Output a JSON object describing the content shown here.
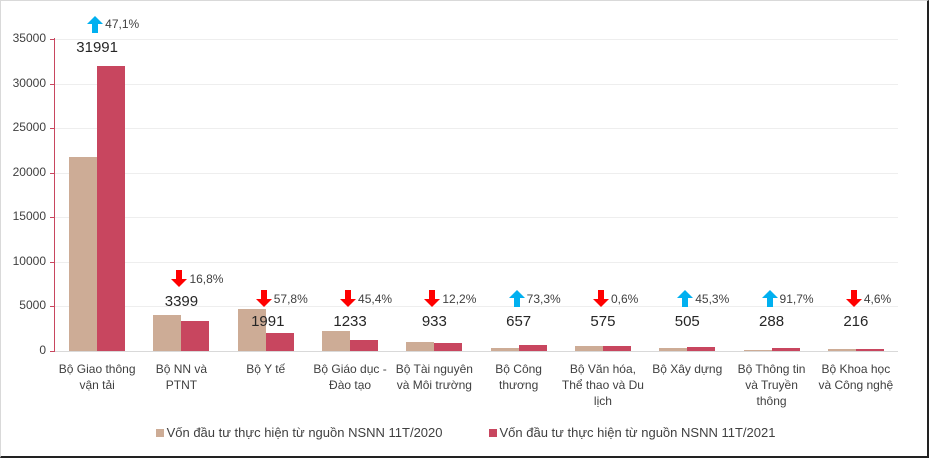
{
  "chart_data": {
    "type": "bar",
    "title": "",
    "xlabel": "",
    "ylabel": "",
    "ylim": [
      0,
      35000
    ],
    "yticks": [
      0,
      5000,
      10000,
      15000,
      20000,
      25000,
      30000,
      35000
    ],
    "grid": true,
    "legend_position": "bottom",
    "categories": [
      "Bộ Giao thông vận tải",
      "Bộ NN và PTNT",
      "Bộ Y tế",
      "Bộ Giáo dục - Đào tạo",
      "Bộ Tài nguyên và Môi trường",
      "Bộ Công thương",
      "Bộ Văn hóa, Thể thao và Du lịch",
      "Bộ Xây dựng",
      "Bộ Thông tin và Truyền thông",
      "Bộ Khoa học và Công nghệ"
    ],
    "series": [
      {
        "name": "Vốn đầu tư thực hiện từ nguồn NSNN 11T/2020",
        "color": "#cdac96",
        "values": [
          21750,
          4060,
          4720,
          2260,
          1060,
          380,
          580,
          350,
          150,
          225
        ]
      },
      {
        "name": "Vốn đầu tư thực hiện từ nguồn NSNN 11T/2021",
        "color": "#c8465f",
        "values": [
          31991,
          3399,
          1991,
          1233,
          933,
          657,
          575,
          505,
          288,
          216
        ]
      }
    ],
    "annotations": [
      {
        "category": "Bộ Giao thông vận tải",
        "direction": "up",
        "change": "47,1%"
      },
      {
        "category": "Bộ NN và PTNT",
        "direction": "down",
        "change": "16,8%"
      },
      {
        "category": "Bộ Y tế",
        "direction": "down",
        "change": "57,8%"
      },
      {
        "category": "Bộ Giáo dục - Đào tạo",
        "direction": "down",
        "change": "45,4%"
      },
      {
        "category": "Bộ Tài nguyên và Môi trường",
        "direction": "down",
        "change": "12,2%"
      },
      {
        "category": "Bộ Công thương",
        "direction": "up",
        "change": "73,3%"
      },
      {
        "category": "Bộ Văn hóa, Thể thao và Du lịch",
        "direction": "down",
        "change": "0,6%"
      },
      {
        "category": "Bộ Xây dựng",
        "direction": "up",
        "change": "45,3%"
      },
      {
        "category": "Bộ Thông tin và Truyền thông",
        "direction": "up",
        "change": "91,7%"
      },
      {
        "category": "Bộ Khoa học và Công nghệ",
        "direction": "down",
        "change": "4,6%"
      }
    ],
    "colors": {
      "up_arrow": "#00b0f0",
      "down_arrow": "#ff0000"
    }
  },
  "axis": {
    "y_labels": [
      "35000",
      "30000",
      "25000",
      "20000",
      "15000",
      "10000",
      "5000",
      "0"
    ]
  },
  "categories_display": [
    [
      "Bộ Giao thông",
      "vận tải"
    ],
    [
      "Bộ NN và",
      "PTNT"
    ],
    [
      "Bộ Y tế"
    ],
    [
      "Bộ Giáo dục -",
      "Đào tạo"
    ],
    [
      "Bộ Tài nguyên",
      "và Môi trường"
    ],
    [
      "Bộ Công",
      "thương"
    ],
    [
      "Bộ Văn hóa,",
      "Thể thao và Du",
      "lịch"
    ],
    [
      "Bộ Xây dựng"
    ],
    [
      "Bộ Thông tin",
      "và Truyền",
      "thông"
    ],
    [
      "Bộ Khoa học",
      "và Công nghệ"
    ]
  ],
  "value_labels": [
    "31991",
    "3399",
    "1991",
    "1233",
    "933",
    "657",
    "575",
    "505",
    "288",
    "216"
  ],
  "legend": {
    "series_2020": "Vốn đầu tư thực hiện từ nguồn NSNN 11T/2020",
    "series_2021": "Vốn đầu tư thực hiện từ nguồn NSNN 11T/2021"
  }
}
